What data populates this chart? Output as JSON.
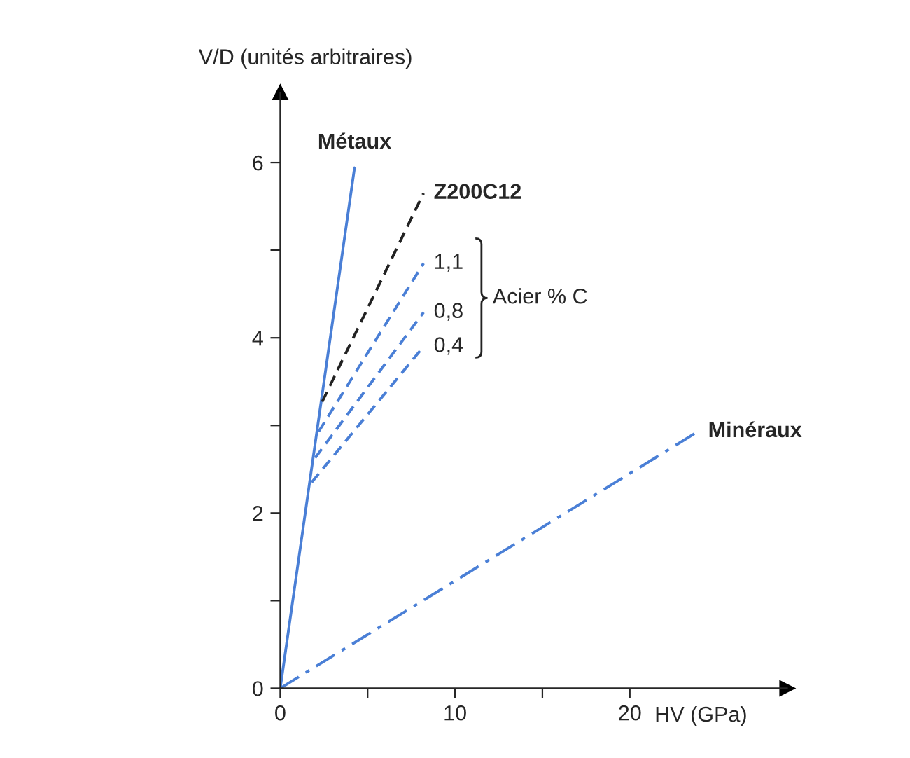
{
  "chart_data": {
    "type": "line",
    "xlabel": "HV (GPa)",
    "ylabel": "V/D (unités arbitraires)",
    "xlim": [
      0,
      29
    ],
    "ylim": [
      0,
      6.8
    ],
    "xticks": [
      0,
      {
        "value": 5,
        "label": null
      },
      10,
      {
        "value": 15,
        "label": null
      },
      20
    ],
    "yticks": [
      0,
      {
        "value": 1,
        "label": null
      },
      2,
      {
        "value": 3,
        "label": null
      },
      4,
      {
        "value": 5,
        "label": null
      },
      6
    ],
    "grid": false,
    "legend": false,
    "marker": "none",
    "annotations": [
      "Acier % C"
    ],
    "series": [
      {
        "name": "Métaux",
        "color": "#4a7fd6",
        "line_style": "solid",
        "x": [
          0,
          4.25
        ],
        "values": [
          0,
          5.94
        ]
      },
      {
        "name": "Z200C12",
        "color": "#222222",
        "line_style": "dashed",
        "x": [
          2.4,
          8.2
        ],
        "values": [
          3.27,
          5.65
        ]
      },
      {
        "name": "1,1",
        "color": "#4a7fd6",
        "line_style": "dashed",
        "x": [
          2.2,
          8.2
        ],
        "values": [
          2.93,
          4.85
        ]
      },
      {
        "name": "0,8",
        "color": "#4a7fd6",
        "line_style": "dashed",
        "x": [
          2.0,
          8.2
        ],
        "values": [
          2.63,
          4.29
        ]
      },
      {
        "name": "0,4",
        "color": "#4a7fd6",
        "line_style": "dashed",
        "x": [
          1.8,
          8.2
        ],
        "values": [
          2.35,
          3.9
        ]
      },
      {
        "name": "Minéraux",
        "color": "#4a7fd6",
        "line_style": "dashdot",
        "x": [
          0,
          23.9
        ],
        "values": [
          0,
          2.93
        ]
      }
    ]
  }
}
